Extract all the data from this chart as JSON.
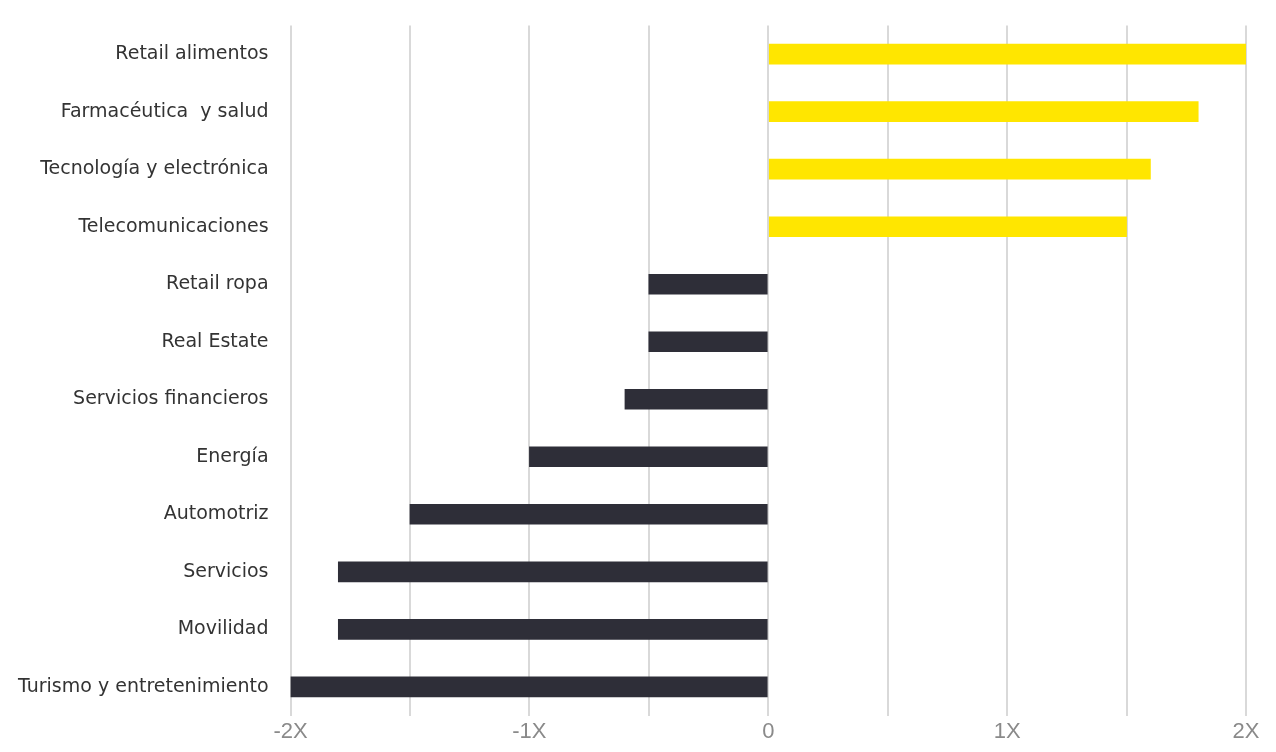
{
  "chart_data": {
    "type": "bar",
    "orientation": "horizontal",
    "categories": [
      "Retail alimentos",
      "Farmacéutica  y salud",
      "Tecnología y electrónica",
      "Telecomunicaciones",
      "Retail ropa",
      "Real Estate",
      "Servicios financieros",
      "Energía",
      "Automotriz",
      "Servicios",
      "Movilidad",
      "Turismo y entretenimiento"
    ],
    "values": [
      2.0,
      1.8,
      1.6,
      1.5,
      -0.5,
      -0.5,
      -0.6,
      -1.0,
      -1.5,
      -1.8,
      -1.8,
      -2.0
    ],
    "colors": [
      "#ffe600",
      "#ffe600",
      "#ffe600",
      "#ffe600",
      "#2e2e38",
      "#2e2e38",
      "#2e2e38",
      "#2e2e38",
      "#2e2e38",
      "#2e2e38",
      "#2e2e38",
      "#2e2e38"
    ],
    "xlim": [
      -2,
      2
    ],
    "xticks": [
      {
        "value": -2,
        "label": "-2X"
      },
      {
        "value": -1.5,
        "label": null
      },
      {
        "value": -1,
        "label": "-1X"
      },
      {
        "value": -0.5,
        "label": null
      },
      0,
      {
        "value": 0.5,
        "label": null
      },
      {
        "value": 1,
        "label": "1X"
      },
      {
        "value": 1.5,
        "label": null
      },
      {
        "value": 2,
        "label": "2X"
      }
    ],
    "grid": "x"
  }
}
